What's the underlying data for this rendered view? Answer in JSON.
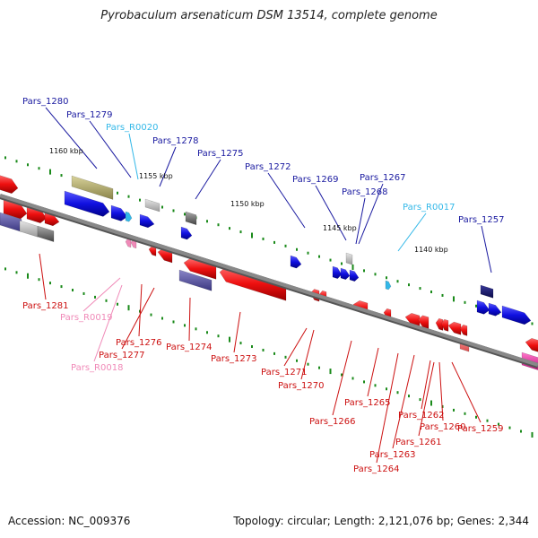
{
  "header": {
    "title": "Pyrobaculum arsenaticum DSM 13514, complete genome"
  },
  "footer": {
    "accession": "Accession: NC_009376",
    "info": "Topology: circular; Length: 2,121,076 bp; Genes: 2,344"
  },
  "scale": [
    {
      "text": "1160 kbp"
    },
    {
      "text": "1155 kbp"
    },
    {
      "text": "1150 kbp"
    },
    {
      "text": "1145 kbp"
    },
    {
      "text": "1140 kbp"
    }
  ],
  "labels": [
    {
      "text": "Pars_1280",
      "strand": "forward"
    },
    {
      "text": "Pars_1279",
      "strand": "forward"
    },
    {
      "text": "Pars_R0020",
      "strand": "forward",
      "type": "rna"
    },
    {
      "text": "Pars_1278",
      "strand": "forward"
    },
    {
      "text": "Pars_1275",
      "strand": "forward"
    },
    {
      "text": "Pars_1272",
      "strand": "forward"
    },
    {
      "text": "Pars_1269",
      "strand": "forward"
    },
    {
      "text": "Pars_1268",
      "strand": "forward"
    },
    {
      "text": "Pars_1267",
      "strand": "forward"
    },
    {
      "text": "Pars_R0017",
      "strand": "forward",
      "type": "rna"
    },
    {
      "text": "Pars_1257",
      "strand": "forward"
    },
    {
      "text": "Pars_1281",
      "strand": "reverse"
    },
    {
      "text": "Pars_R0019",
      "strand": "reverse",
      "type": "rna"
    },
    {
      "text": "Pars_1276",
      "strand": "reverse"
    },
    {
      "text": "Pars_1277",
      "strand": "reverse"
    },
    {
      "text": "Pars_R0018",
      "strand": "reverse",
      "type": "rna"
    },
    {
      "text": "Pars_1274",
      "strand": "reverse"
    },
    {
      "text": "Pars_1273",
      "strand": "reverse"
    },
    {
      "text": "Pars_1271",
      "strand": "reverse"
    },
    {
      "text": "Pars_1270",
      "strand": "reverse"
    },
    {
      "text": "Pars_1266",
      "strand": "reverse"
    },
    {
      "text": "Pars_1265",
      "strand": "reverse"
    },
    {
      "text": "Pars_1262",
      "strand": "reverse"
    },
    {
      "text": "Pars_1260",
      "strand": "reverse"
    },
    {
      "text": "Pars_1261",
      "strand": "reverse"
    },
    {
      "text": "Pars_1263",
      "strand": "reverse"
    },
    {
      "text": "Pars_1264",
      "strand": "reverse"
    },
    {
      "text": "Pars_1259",
      "strand": "reverse"
    }
  ],
  "colors": {
    "forward_gene": "#1010e0",
    "forward_label": "#1a1aa0",
    "reverse_gene": "#ee1010",
    "reverse_label": "#cc1010",
    "rna_forward": "#33b8e8",
    "rna_reverse": "#f08ab8",
    "backbone": "#888888",
    "tick": "#1a8a1a"
  }
}
